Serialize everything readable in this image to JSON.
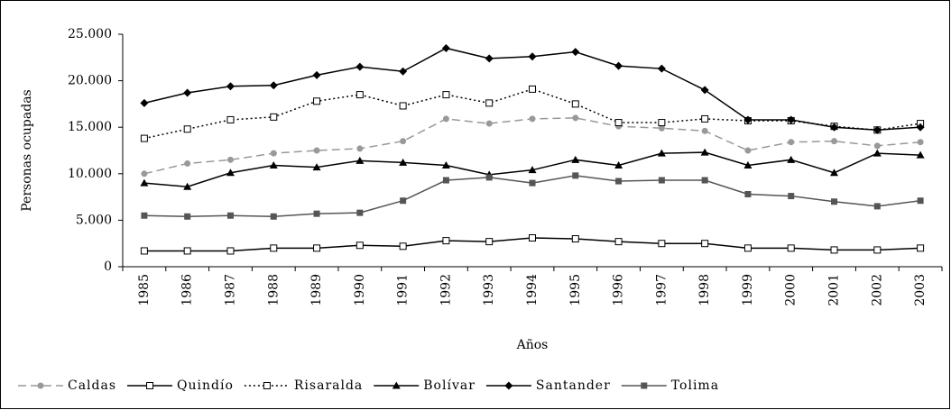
{
  "chart_data": {
    "type": "line",
    "x_label": "Años",
    "y_label": "Personas ocupadas",
    "categories": [
      "1985",
      "1986",
      "1987",
      "1988",
      "1989",
      "1990",
      "1991",
      "1992",
      "1993",
      "1994",
      "1995",
      "1996",
      "1997",
      "1998",
      "1999",
      "2000",
      "2001",
      "2002",
      "2003"
    ],
    "ylim": [
      0,
      25000
    ],
    "yticks": [
      0,
      {
        "value": 5000,
        "label": "5.000"
      },
      {
        "value": 10000,
        "label": "10.000"
      },
      {
        "value": 15000,
        "label": "15.000"
      },
      {
        "value": 20000,
        "label": "20.000"
      },
      {
        "value": 25000,
        "label": "25.000"
      }
    ],
    "grid": false,
    "legend": "bottom",
    "series": [
      {
        "name": "Caldas",
        "color": "#999999",
        "marker": "circle",
        "dash": "dashed",
        "values": [
          10000,
          11100,
          11500,
          12200,
          12500,
          12700,
          13500,
          15900,
          15400,
          15900,
          16000,
          15100,
          14900,
          14600,
          12500,
          13400,
          13500,
          13000,
          13400
        ]
      },
      {
        "name": "Quindío",
        "color": "#000000",
        "marker": "open-square",
        "dash": "solid",
        "values": [
          1700,
          1700,
          1700,
          2000,
          2000,
          2300,
          2200,
          2800,
          2700,
          3100,
          3000,
          2700,
          2500,
          2500,
          2000,
          2000,
          1800,
          1800,
          2000
        ]
      },
      {
        "name": "Risaralda",
        "color": "#000000",
        "marker": "open-square",
        "dash": "dotted",
        "values": [
          13800,
          14800,
          15800,
          16100,
          17800,
          18500,
          17300,
          18500,
          17600,
          19100,
          17500,
          15500,
          15500,
          15900,
          15700,
          15700,
          15100,
          14700,
          15400
        ]
      },
      {
        "name": "Bolívar",
        "color": "#000000",
        "marker": "triangle",
        "dash": "solid",
        "values": [
          9000,
          8600,
          10100,
          10900,
          10700,
          11400,
          11200,
          10900,
          9900,
          10400,
          11500,
          10900,
          12200,
          12300,
          10900,
          11500,
          10100,
          12200,
          12000
        ]
      },
      {
        "name": "Santander",
        "color": "#000000",
        "marker": "diamond",
        "dash": "solid",
        "values": [
          17600,
          18700,
          19400,
          19500,
          20600,
          21500,
          21000,
          23500,
          22400,
          22600,
          23100,
          21600,
          21300,
          19000,
          15800,
          15800,
          15000,
          14700,
          15000
        ]
      },
      {
        "name": "Tolima",
        "color": "#555555",
        "marker": "square",
        "dash": "solid",
        "values": [
          5500,
          5400,
          5500,
          5400,
          5700,
          5800,
          7100,
          9300,
          9600,
          9000,
          9800,
          9200,
          9300,
          9300,
          7800,
          7600,
          7000,
          6500,
          7100
        ]
      }
    ]
  }
}
